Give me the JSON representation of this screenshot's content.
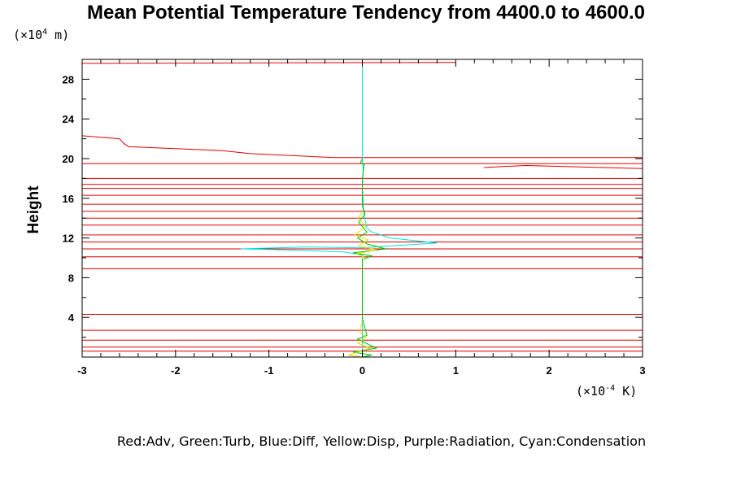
{
  "chart_data": {
    "type": "line",
    "title": "Mean Potential Temperature Tendency from 4400.0 to 4600.0",
    "ylabel": "Height",
    "y_unit_prefix": "(×10",
    "y_unit_exp": "4",
    "y_unit_suffix": " m)",
    "x_unit_prefix": "(×10",
    "x_unit_exp": "-4",
    "x_unit_suffix": " K)",
    "legend_text": "Red:Adv, Green:Turb, Blue:Diff, Yellow:Disp, Purple:Radiation, Cyan:Condensation",
    "xlim": [
      -3,
      3
    ],
    "ylim": [
      0,
      30
    ],
    "x_ticks": [
      -3,
      -2,
      -1,
      0,
      1,
      2,
      3
    ],
    "y_ticks": [
      4,
      8,
      12,
      16,
      20,
      24,
      28
    ],
    "series": [
      {
        "name": "Adv",
        "color": "#e00000",
        "segments": [
          [
            [
              -3,
              29.6
            ],
            [
              1.0,
              29.7
            ]
          ],
          [
            [
              -3,
              22.3
            ],
            [
              -2.6,
              22.0
            ],
            [
              -2.55,
              21.5
            ],
            [
              -2.5,
              21.2
            ],
            [
              -1.5,
              20.8
            ],
            [
              -1.2,
              20.5
            ],
            [
              -0.3,
              20.1
            ],
            [
              3,
              20.1
            ]
          ],
          [
            [
              -3,
              19.5
            ],
            [
              3,
              19.5
            ]
          ],
          [
            [
              1.3,
              19.1
            ],
            [
              1.5,
              19.2
            ],
            [
              1.75,
              19.3
            ],
            [
              3,
              19.0
            ]
          ],
          [
            [
              -3,
              18.0
            ],
            [
              3,
              18.0
            ]
          ],
          [
            [
              -3,
              17.4
            ],
            [
              3,
              17.4
            ]
          ],
          [
            [
              -3,
              17.0
            ],
            [
              3,
              17.0
            ]
          ],
          [
            [
              -3,
              16.3
            ],
            [
              3,
              16.3
            ]
          ],
          [
            [
              -3,
              15.4
            ],
            [
              3,
              15.4
            ]
          ],
          [
            [
              -3,
              14.7
            ],
            [
              3,
              14.7
            ]
          ],
          [
            [
              -3,
              14.0
            ],
            [
              3,
              14.0
            ]
          ],
          [
            [
              -3,
              13.3
            ],
            [
              3,
              13.3
            ]
          ],
          [
            [
              -3,
              12.3
            ],
            [
              3,
              12.3
            ]
          ],
          [
            [
              -3,
              11.6
            ],
            [
              3,
              11.6
            ]
          ],
          [
            [
              -3,
              10.9
            ],
            [
              3,
              10.9
            ]
          ],
          [
            [
              -3,
              10.1
            ],
            [
              3,
              10.1
            ]
          ],
          [
            [
              -3,
              8.9
            ],
            [
              3,
              8.9
            ]
          ],
          [
            [
              -3,
              4.3
            ],
            [
              3,
              4.3
            ]
          ],
          [
            [
              -3,
              2.7
            ],
            [
              3,
              2.7
            ]
          ],
          [
            [
              -3,
              1.7
            ],
            [
              3,
              1.7
            ]
          ],
          [
            [
              -3,
              1.0
            ],
            [
              3,
              1.0
            ]
          ],
          [
            [
              -3,
              0.6
            ],
            [
              3,
              0.6
            ]
          ]
        ]
      },
      {
        "name": "Condensation",
        "color": "#00e0e0",
        "segments": [
          [
            [
              0,
              29.7
            ],
            [
              0,
              19.6
            ],
            [
              0.01,
              19.0
            ],
            [
              0,
              17.0
            ],
            [
              0.02,
              14.2
            ],
            [
              0.05,
              13.0
            ],
            [
              0.1,
              12.6
            ],
            [
              0.3,
              12.0
            ],
            [
              0.6,
              11.7
            ],
            [
              0.8,
              11.5
            ],
            [
              0.3,
              11.2
            ],
            [
              0,
              11.0
            ],
            [
              -0.6,
              11.1
            ],
            [
              -1.3,
              10.9
            ],
            [
              -0.8,
              10.8
            ],
            [
              -0.2,
              10.6
            ],
            [
              0,
              10.3
            ],
            [
              0,
              0
            ]
          ]
        ]
      },
      {
        "name": "Turb",
        "color": "#00c000",
        "segments": [
          [
            [
              0,
              20.0
            ],
            [
              -0.02,
              19.6
            ],
            [
              0.02,
              19.4
            ],
            [
              0,
              18.0
            ],
            [
              0,
              15.2
            ],
            [
              0.03,
              14.4
            ],
            [
              -0.04,
              13.6
            ],
            [
              0.05,
              12.6
            ],
            [
              -0.05,
              12.0
            ],
            [
              0.05,
              11.4
            ],
            [
              0.25,
              10.9
            ],
            [
              -0.1,
              10.5
            ],
            [
              0.1,
              10.2
            ],
            [
              0,
              9.8
            ],
            [
              0,
              3.9
            ],
            [
              0.05,
              2.2
            ],
            [
              -0.05,
              1.8
            ],
            [
              0.15,
              0.9
            ],
            [
              -0.1,
              0.5
            ],
            [
              0.1,
              0.2
            ],
            [
              0,
              0.0
            ]
          ]
        ]
      },
      {
        "name": "Disp",
        "color": "#e0e000",
        "segments": [
          [
            [
              0,
              14.6
            ],
            [
              -0.05,
              14.0
            ],
            [
              0.04,
              13.2
            ],
            [
              -0.08,
              12.3
            ],
            [
              0.06,
              11.8
            ],
            [
              -0.04,
              11.2
            ],
            [
              0.15,
              10.8
            ],
            [
              -0.06,
              10.4
            ],
            [
              0.03,
              10.0
            ],
            [
              0,
              9.8
            ]
          ],
          [
            [
              0,
              3.6
            ],
            [
              -0.03,
              2.6
            ],
            [
              0.04,
              2.0
            ],
            [
              -0.05,
              1.4
            ],
            [
              0.08,
              0.9
            ],
            [
              -0.15,
              0.2
            ],
            [
              0,
              0.0
            ]
          ]
        ]
      }
    ]
  }
}
